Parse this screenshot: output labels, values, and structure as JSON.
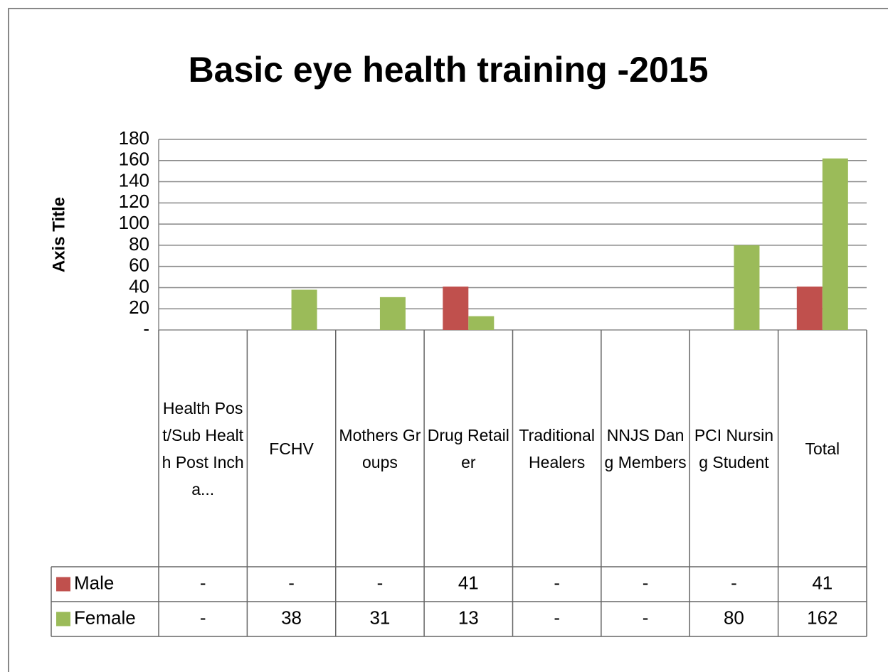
{
  "chart_data": {
    "type": "bar",
    "title": "Basic eye health training -2015",
    "y_axis_title": "Axis Title",
    "categories": [
      "Health Post/Sub Health Post Incha...",
      "FCHV",
      "Mothers Groups",
      "Drug Retailer",
      "Traditional Healers",
      "NNJS Dang Members",
      "PCI Nursing Student",
      "Total"
    ],
    "series": [
      {
        "name": "Male",
        "color": "#c0504d",
        "values": [
          0,
          0,
          0,
          41,
          0,
          0,
          0,
          41
        ],
        "value_labels": [
          "-",
          "-",
          "-",
          "41",
          "-",
          "-",
          "-",
          "41"
        ]
      },
      {
        "name": "Female",
        "color": "#9bbb59",
        "values": [
          0,
          38,
          31,
          13,
          0,
          0,
          80,
          162
        ],
        "value_labels": [
          "-",
          "38",
          "31",
          "13",
          "-",
          "-",
          "80",
          "162"
        ]
      }
    ],
    "ylim": [
      0,
      180
    ],
    "yticks": [
      {
        "value": 0,
        "label": "-"
      },
      20,
      40,
      60,
      80,
      100,
      120,
      140,
      160,
      180
    ],
    "grid": true
  }
}
